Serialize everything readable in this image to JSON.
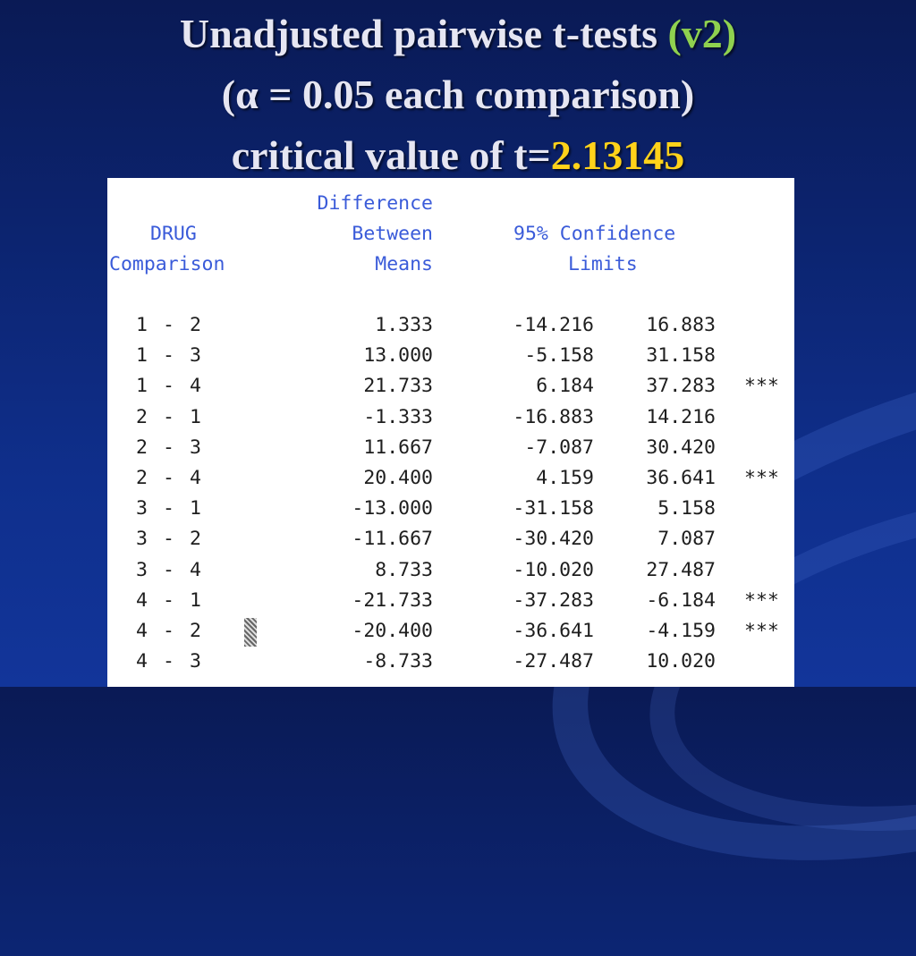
{
  "title": {
    "line1_main": "Unadjusted pairwise t-tests",
    "line1_version": "(v2)",
    "line2": "(α = 0.05 each comparison)",
    "line3_prefix": "critical value of t=",
    "line3_value": "2.13145"
  },
  "table": {
    "headers": {
      "comparison_line1": "DRUG",
      "comparison_line2": "Comparison",
      "diff_line1": "Difference",
      "diff_line2": "Between",
      "diff_line3": "Means",
      "ci_line1": "95% Confidence",
      "ci_line2": "Limits"
    },
    "rows": [
      {
        "a": "1",
        "b": "2",
        "diff": "1.333",
        "lower": "-14.216",
        "upper": "16.883",
        "sig": ""
      },
      {
        "a": "1",
        "b": "3",
        "diff": "13.000",
        "lower": "-5.158",
        "upper": "31.158",
        "sig": ""
      },
      {
        "a": "1",
        "b": "4",
        "diff": "21.733",
        "lower": "6.184",
        "upper": "37.283",
        "sig": "***"
      },
      {
        "a": "2",
        "b": "1",
        "diff": "-1.333",
        "lower": "-16.883",
        "upper": "14.216",
        "sig": ""
      },
      {
        "a": "2",
        "b": "3",
        "diff": "11.667",
        "lower": "-7.087",
        "upper": "30.420",
        "sig": ""
      },
      {
        "a": "2",
        "b": "4",
        "diff": "20.400",
        "lower": "4.159",
        "upper": "36.641",
        "sig": "***"
      },
      {
        "a": "3",
        "b": "1",
        "diff": "-13.000",
        "lower": "-31.158",
        "upper": "5.158",
        "sig": ""
      },
      {
        "a": "3",
        "b": "2",
        "diff": "-11.667",
        "lower": "-30.420",
        "upper": "7.087",
        "sig": ""
      },
      {
        "a": "3",
        "b": "4",
        "diff": "8.733",
        "lower": "-10.020",
        "upper": "27.487",
        "sig": ""
      },
      {
        "a": "4",
        "b": "1",
        "diff": "-21.733",
        "lower": "-37.283",
        "upper": "-6.184",
        "sig": "***"
      },
      {
        "a": "4",
        "b": "2",
        "diff": "-20.400",
        "lower": "-36.641",
        "upper": "-4.159",
        "sig": "***"
      },
      {
        "a": "4",
        "b": "3",
        "diff": "-8.733",
        "lower": "-27.487",
        "upper": "10.020",
        "sig": ""
      }
    ]
  }
}
